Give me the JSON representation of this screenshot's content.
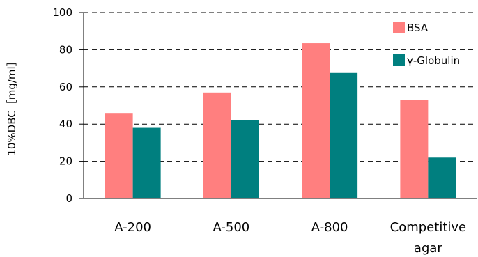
{
  "chart_data": {
    "type": "bar",
    "title": "",
    "xlabel": "",
    "ylabel": "10%DBC［mg/ml］",
    "categories": [
      "A-200",
      "A-500",
      "A-800",
      [
        "Competitive",
        "agar"
      ]
    ],
    "series": [
      {
        "name": "BSA",
        "color": "#ff7f7f",
        "values": [
          46,
          57,
          83.5,
          53
        ]
      },
      {
        "name": "γ-Globulin",
        "color": "#007f7f",
        "values": [
          38,
          42,
          67.5,
          22
        ]
      }
    ],
    "ylim": [
      0,
      100
    ],
    "yticks": [
      0,
      20,
      40,
      60,
      80,
      100
    ],
    "grid": "dashed horizontal",
    "legend_position": "top-right"
  }
}
